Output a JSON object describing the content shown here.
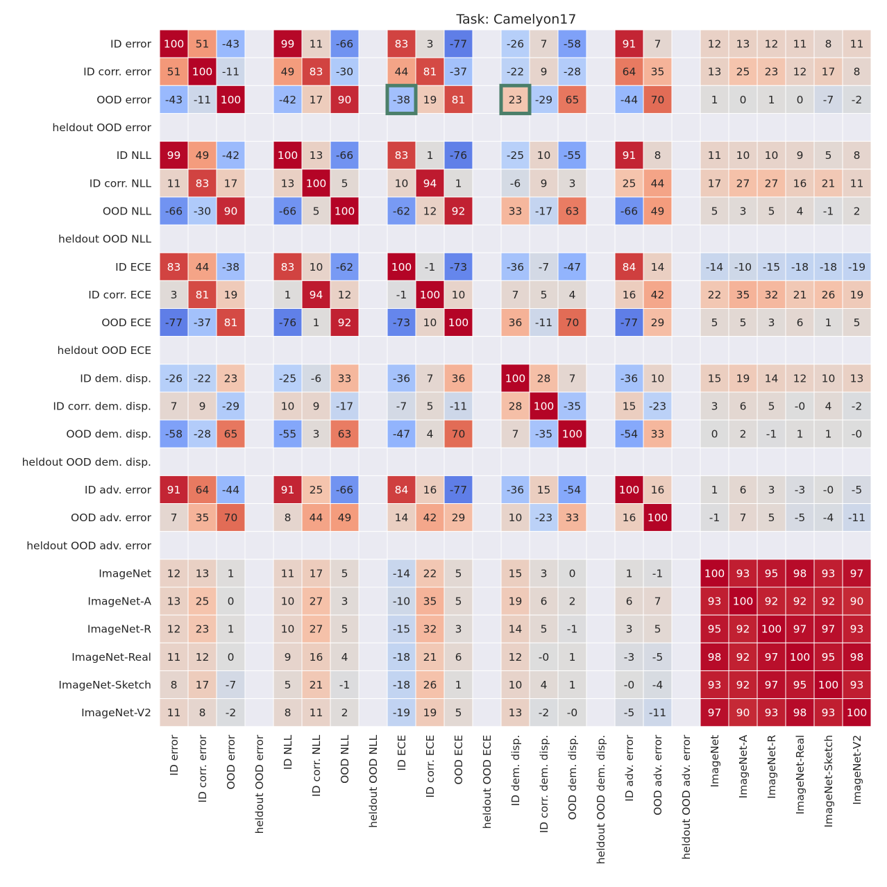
{
  "chart_data": {
    "type": "heatmap",
    "title": "Task: Camelyon17",
    "row_labels": [
      "ID error",
      "ID corr. error",
      "OOD error",
      "heldout OOD error",
      "ID NLL",
      "ID corr. NLL",
      "OOD NLL",
      "heldout OOD NLL",
      "ID ECE",
      "ID corr. ECE",
      "OOD ECE",
      "heldout OOD ECE",
      "ID dem. disp.",
      "ID corr. dem. disp.",
      "OOD dem. disp.",
      "heldout OOD dem. disp.",
      "ID adv. error",
      "OOD adv. error",
      "heldout OOD adv. error",
      "ImageNet",
      "ImageNet-A",
      "ImageNet-R",
      "ImageNet-Real",
      "ImageNet-Sketch",
      "ImageNet-V2"
    ],
    "col_labels": [
      "ID error",
      "ID corr. error",
      "OOD error",
      "heldout OOD error",
      "ID NLL",
      "ID corr. NLL",
      "OOD NLL",
      "heldout OOD NLL",
      "ID ECE",
      "ID corr. ECE",
      "OOD ECE",
      "heldout OOD ECE",
      "ID dem. disp.",
      "ID corr. dem. disp.",
      "OOD dem. disp.",
      "heldout OOD dem. disp.",
      "ID adv. error",
      "OOD adv. error",
      "heldout OOD adv. error",
      "ImageNet",
      "ImageNet-A",
      "ImageNet-R",
      "ImageNet-Real",
      "ImageNet-Sketch",
      "ImageNet-V2"
    ],
    "values": [
      [
        100,
        51,
        -43,
        null,
        99,
        11,
        -66,
        null,
        83,
        3,
        -77,
        null,
        -26,
        7,
        -58,
        null,
        91,
        7,
        null,
        12,
        13,
        12,
        11,
        8,
        11
      ],
      [
        51,
        100,
        -11,
        null,
        49,
        83,
        -30,
        null,
        44,
        81,
        -37,
        null,
        -22,
        9,
        -28,
        null,
        64,
        35,
        null,
        13,
        25,
        23,
        12,
        17,
        8
      ],
      [
        -43,
        -11,
        100,
        null,
        -42,
        17,
        90,
        null,
        -38,
        19,
        81,
        null,
        23,
        -29,
        65,
        null,
        -44,
        70,
        null,
        1,
        0,
        1,
        0,
        -7,
        -2
      ],
      [
        null,
        null,
        null,
        null,
        null,
        null,
        null,
        null,
        null,
        null,
        null,
        null,
        null,
        null,
        null,
        null,
        null,
        null,
        null,
        null,
        null,
        null,
        null,
        null,
        null
      ],
      [
        99,
        49,
        -42,
        null,
        100,
        13,
        -66,
        null,
        83,
        1,
        -76,
        null,
        -25,
        10,
        -55,
        null,
        91,
        8,
        null,
        11,
        10,
        10,
        9,
        5,
        8
      ],
      [
        11,
        83,
        17,
        null,
        13,
        100,
        5,
        null,
        10,
        94,
        1,
        null,
        -6,
        9,
        3,
        null,
        25,
        44,
        null,
        17,
        27,
        27,
        16,
        21,
        11
      ],
      [
        -66,
        -30,
        90,
        null,
        -66,
        5,
        100,
        null,
        -62,
        12,
        92,
        null,
        33,
        -17,
        63,
        null,
        -66,
        49,
        null,
        5,
        3,
        5,
        4,
        -1,
        2
      ],
      [
        null,
        null,
        null,
        null,
        null,
        null,
        null,
        null,
        null,
        null,
        null,
        null,
        null,
        null,
        null,
        null,
        null,
        null,
        null,
        null,
        null,
        null,
        null,
        null,
        null
      ],
      [
        83,
        44,
        -38,
        null,
        83,
        10,
        -62,
        null,
        100,
        -1,
        -73,
        null,
        -36,
        -7,
        -47,
        null,
        84,
        14,
        null,
        -14,
        -10,
        -15,
        -18,
        -18,
        -19
      ],
      [
        3,
        81,
        19,
        null,
        1,
        94,
        12,
        null,
        -1,
        100,
        10,
        null,
        7,
        5,
        4,
        null,
        16,
        42,
        null,
        22,
        35,
        32,
        21,
        26,
        19
      ],
      [
        -77,
        -37,
        81,
        null,
        -76,
        1,
        92,
        null,
        -73,
        10,
        100,
        null,
        36,
        -11,
        70,
        null,
        -77,
        29,
        null,
        5,
        5,
        3,
        6,
        1,
        5
      ],
      [
        null,
        null,
        null,
        null,
        null,
        null,
        null,
        null,
        null,
        null,
        null,
        null,
        null,
        null,
        null,
        null,
        null,
        null,
        null,
        null,
        null,
        null,
        null,
        null,
        null
      ],
      [
        -26,
        -22,
        23,
        null,
        -25,
        -6,
        33,
        null,
        -36,
        7,
        36,
        null,
        100,
        28,
        7,
        null,
        -36,
        10,
        null,
        15,
        19,
        14,
        12,
        10,
        13
      ],
      [
        7,
        9,
        -29,
        null,
        10,
        9,
        -17,
        null,
        -7,
        5,
        -11,
        null,
        28,
        100,
        -35,
        null,
        15,
        -23,
        null,
        3,
        6,
        5,
        "-0",
        4,
        -2
      ],
      [
        -58,
        -28,
        65,
        null,
        -55,
        3,
        63,
        null,
        -47,
        4,
        70,
        null,
        7,
        -35,
        100,
        null,
        -54,
        33,
        null,
        0,
        2,
        -1,
        1,
        1,
        "-0"
      ],
      [
        null,
        null,
        null,
        null,
        null,
        null,
        null,
        null,
        null,
        null,
        null,
        null,
        null,
        null,
        null,
        null,
        null,
        null,
        null,
        null,
        null,
        null,
        null,
        null,
        null
      ],
      [
        91,
        64,
        -44,
        null,
        91,
        25,
        -66,
        null,
        84,
        16,
        -77,
        null,
        -36,
        15,
        -54,
        null,
        100,
        16,
        null,
        1,
        6,
        3,
        -3,
        "-0",
        -5
      ],
      [
        7,
        35,
        70,
        null,
        8,
        44,
        49,
        null,
        14,
        42,
        29,
        null,
        10,
        -23,
        33,
        null,
        16,
        100,
        null,
        -1,
        7,
        5,
        -5,
        -4,
        -11
      ],
      [
        null,
        null,
        null,
        null,
        null,
        null,
        null,
        null,
        null,
        null,
        null,
        null,
        null,
        null,
        null,
        null,
        null,
        null,
        null,
        null,
        null,
        null,
        null,
        null,
        null
      ],
      [
        12,
        13,
        1,
        null,
        11,
        17,
        5,
        null,
        -14,
        22,
        5,
        null,
        15,
        3,
        0,
        null,
        1,
        -1,
        null,
        100,
        93,
        95,
        98,
        93,
        97
      ],
      [
        13,
        25,
        0,
        null,
        10,
        27,
        3,
        null,
        -10,
        35,
        5,
        null,
        19,
        6,
        2,
        null,
        6,
        7,
        null,
        93,
        100,
        92,
        92,
        92,
        90
      ],
      [
        12,
        23,
        1,
        null,
        10,
        27,
        5,
        null,
        -15,
        32,
        3,
        null,
        14,
        5,
        -1,
        null,
        3,
        5,
        null,
        95,
        92,
        100,
        97,
        97,
        93
      ],
      [
        11,
        12,
        0,
        null,
        9,
        16,
        4,
        null,
        -18,
        21,
        6,
        null,
        12,
        "-0",
        1,
        null,
        -3,
        -5,
        null,
        98,
        92,
        97,
        100,
        95,
        98
      ],
      [
        8,
        17,
        -7,
        null,
        5,
        21,
        -1,
        null,
        -18,
        26,
        1,
        null,
        10,
        4,
        1,
        null,
        "-0",
        -4,
        null,
        93,
        92,
        97,
        95,
        100,
        93
      ],
      [
        11,
        8,
        -2,
        null,
        8,
        11,
        2,
        null,
        -19,
        19,
        5,
        null,
        13,
        -2,
        "-0",
        null,
        -5,
        -11,
        null,
        97,
        90,
        93,
        98,
        93,
        100
      ]
    ],
    "value_range": [
      -100,
      100
    ],
    "colormap": "coolwarm",
    "missing_color": "#eaeaf2",
    "highlighted_cells": [
      {
        "row": "OOD error",
        "col": "ID ECE"
      },
      {
        "row": "OOD error",
        "col": "ID dem. disp."
      }
    ],
    "highlight_color": "#4b7f6a"
  }
}
